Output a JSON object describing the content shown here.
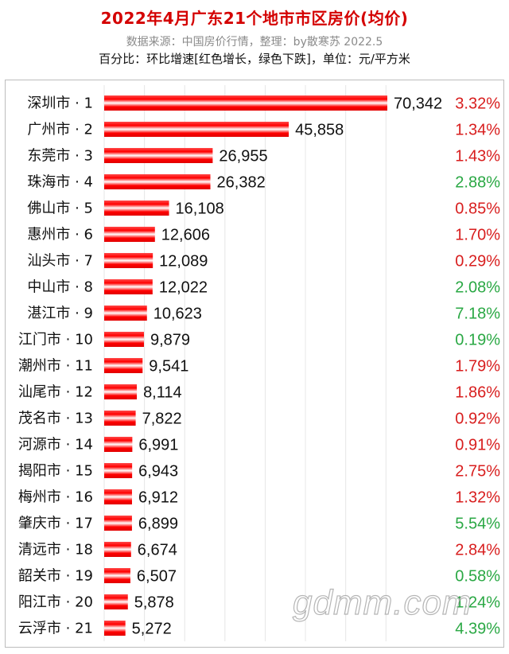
{
  "header": {
    "title": "2022年4月广东21个地市市区房价(均价)",
    "subtitle": "数据来源：中国房价行情，整理：by散寒苏 2022.5",
    "note": "百分比：环比增速[红色增长，绿色下跌]，单位：元/平方米"
  },
  "watermark": "gdmm.com",
  "colors": {
    "bar": "#ff1a1a",
    "up": "#d81e1e",
    "down": "#2aa844",
    "title": "#d40000"
  },
  "chart_data": {
    "type": "bar",
    "orientation": "horizontal",
    "categories": [
      "深圳市 · 1",
      "广州市 · 2",
      "东莞市 · 3",
      "珠海市 · 4",
      "佛山市 · 5",
      "惠州市 · 6",
      "汕头市 · 7",
      "中山市 · 8",
      "湛江市 · 9",
      "江门市 · 10",
      "潮州市 · 11",
      "汕尾市 · 12",
      "茂名市 · 13",
      "河源市 · 14",
      "揭阳市 · 15",
      "梅州市 · 16",
      "肇庆市 · 17",
      "清远市 · 18",
      "韶关市 · 19",
      "阳江市 · 20",
      "云浮市 · 21"
    ],
    "values": [
      70342,
      45858,
      26955,
      26382,
      16108,
      12606,
      12089,
      12022,
      10623,
      9879,
      9541,
      8114,
      7822,
      6991,
      6943,
      6912,
      6899,
      6674,
      6507,
      5878,
      5272
    ],
    "value_labels": [
      "70,342",
      "45,858",
      "26,955",
      "26,382",
      "16,108",
      "12,606",
      "12,089",
      "12,022",
      "10,623",
      "9,879",
      "9,541",
      "8,114",
      "7,822",
      "6,991",
      "6,943",
      "6,912",
      "6,899",
      "6,674",
      "6,507",
      "5,878",
      "5,272"
    ],
    "changes": [
      "3.32%",
      "1.34%",
      "1.43%",
      "2.88%",
      "0.85%",
      "1.70%",
      "0.29%",
      "2.08%",
      "7.18%",
      "0.19%",
      "1.79%",
      "1.86%",
      "0.92%",
      "0.91%",
      "2.75%",
      "1.32%",
      "5.54%",
      "2.84%",
      "0.58%",
      "1.24%",
      "4.39%"
    ],
    "change_direction": [
      "up",
      "up",
      "up",
      "down",
      "up",
      "up",
      "up",
      "down",
      "down",
      "down",
      "up",
      "up",
      "up",
      "up",
      "up",
      "up",
      "down",
      "up",
      "down",
      "down",
      "down"
    ],
    "xlim": [
      0,
      70342
    ],
    "grid": true,
    "legend": "none"
  }
}
